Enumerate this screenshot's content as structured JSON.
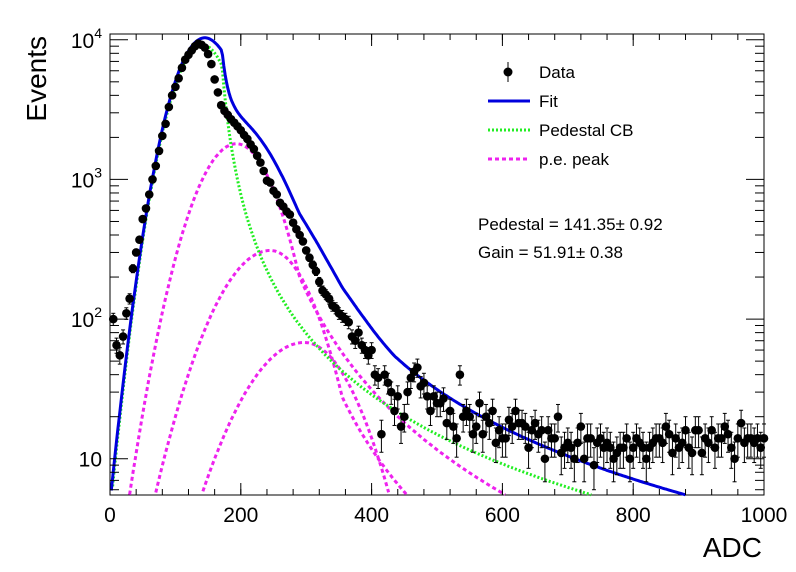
{
  "chart_data": {
    "type": "scatter",
    "xlabel": "ADC",
    "ylabel": "Events",
    "xlim": [
      0,
      1000
    ],
    "ylim": [
      5.5,
      11000
    ],
    "yscale": "log",
    "x_ticks": [
      {
        "value": 0,
        "label": "0"
      },
      {
        "value": 200,
        "label": "200"
      },
      {
        "value": 400,
        "label": "400"
      },
      {
        "value": 600,
        "label": "600"
      },
      {
        "value": 800,
        "label": "800"
      },
      {
        "value": 1000,
        "label": "1000"
      }
    ],
    "y_ticks": [
      {
        "value": 10,
        "base": "10",
        "exp": ""
      },
      {
        "value": 100,
        "base": "10",
        "exp": "2"
      },
      {
        "value": 1000,
        "base": "10",
        "exp": "3"
      },
      {
        "value": 10000,
        "base": "10",
        "exp": "4"
      }
    ],
    "legend": {
      "placement": "top-right",
      "entries": [
        {
          "label": "Data",
          "style": "marker",
          "color": "#000000"
        },
        {
          "label": "Fit",
          "style": "solid",
          "color": "#0000dd"
        },
        {
          "label": "Pedestal CB",
          "style": "dotted",
          "color": "#22ee22"
        },
        {
          "label": "p.e. peak",
          "style": "dashed",
          "color": "#ee22ee"
        }
      ]
    },
    "annotations": [
      "Pedestal = 141.35± 0.92",
      "Gain = 51.91± 0.38"
    ],
    "data_points": [
      [
        5,
        100
      ],
      [
        10,
        65
      ],
      [
        15,
        55
      ],
      [
        20,
        75
      ],
      [
        25,
        110
      ],
      [
        30,
        140
      ],
      [
        35,
        230
      ],
      [
        40,
        300
      ],
      [
        45,
        370
      ],
      [
        50,
        520
      ],
      [
        55,
        620
      ],
      [
        60,
        780
      ],
      [
        65,
        1000
      ],
      [
        70,
        1250
      ],
      [
        75,
        1600
      ],
      [
        80,
        2050
      ],
      [
        85,
        2500
      ],
      [
        90,
        3300
      ],
      [
        95,
        4000
      ],
      [
        100,
        4600
      ],
      [
        105,
        5300
      ],
      [
        110,
        6300
      ],
      [
        115,
        7200
      ],
      [
        120,
        7800
      ],
      [
        125,
        8400
      ],
      [
        130,
        9000
      ],
      [
        135,
        9400
      ],
      [
        140,
        9200
      ],
      [
        145,
        8800
      ],
      [
        150,
        7900
      ],
      [
        155,
        6700
      ],
      [
        160,
        5200
      ],
      [
        165,
        4200
      ],
      [
        170,
        3400
      ],
      [
        175,
        3100
      ],
      [
        180,
        2900
      ],
      [
        185,
        2700
      ],
      [
        190,
        2550
      ],
      [
        195,
        2400
      ],
      [
        200,
        2250
      ],
      [
        205,
        2080
      ],
      [
        210,
        1950
      ],
      [
        215,
        1780
      ],
      [
        220,
        1650
      ],
      [
        225,
        1480
      ],
      [
        230,
        1320
      ],
      [
        235,
        1150
      ],
      [
        240,
        980
      ],
      [
        245,
        950
      ],
      [
        250,
        830
      ],
      [
        255,
        780
      ],
      [
        260,
        680
      ],
      [
        265,
        640
      ],
      [
        270,
        590
      ],
      [
        275,
        560
      ],
      [
        280,
        490
      ],
      [
        285,
        440
      ],
      [
        290,
        400
      ],
      [
        295,
        360
      ],
      [
        300,
        310
      ],
      [
        305,
        275
      ],
      [
        310,
        245
      ],
      [
        315,
        220
      ],
      [
        320,
        185
      ],
      [
        325,
        160
      ],
      [
        330,
        150
      ],
      [
        335,
        140
      ],
      [
        340,
        125
      ],
      [
        345,
        120
      ],
      [
        350,
        110
      ],
      [
        355,
        105
      ],
      [
        360,
        100
      ],
      [
        365,
        95
      ],
      [
        370,
        75
      ],
      [
        375,
        70
      ],
      [
        380,
        80
      ],
      [
        385,
        65
      ],
      [
        390,
        60
      ],
      [
        395,
        55
      ],
      [
        400,
        60
      ],
      [
        405,
        40
      ],
      [
        410,
        38
      ],
      [
        415,
        15
      ],
      [
        420,
        40
      ],
      [
        425,
        35
      ],
      [
        430,
        30
      ],
      [
        435,
        22
      ],
      [
        440,
        28
      ],
      [
        445,
        17
      ],
      [
        450,
        20
      ],
      [
        455,
        30
      ],
      [
        460,
        38
      ],
      [
        465,
        42
      ],
      [
        470,
        45
      ],
      [
        475,
        33
      ],
      [
        480,
        35
      ],
      [
        485,
        28
      ],
      [
        490,
        22
      ],
      [
        495,
        28
      ],
      [
        500,
        25
      ],
      [
        505,
        25
      ],
      [
        510,
        27
      ],
      [
        515,
        18
      ],
      [
        520,
        22
      ],
      [
        525,
        17
      ],
      [
        530,
        14
      ],
      [
        535,
        40
      ],
      [
        540,
        20
      ],
      [
        545,
        22
      ],
      [
        550,
        20
      ],
      [
        555,
        15
      ],
      [
        560,
        17
      ],
      [
        565,
        25
      ],
      [
        570,
        15
      ],
      [
        575,
        20
      ],
      [
        580,
        18
      ],
      [
        585,
        22
      ],
      [
        590,
        13
      ],
      [
        595,
        16
      ],
      [
        600,
        14
      ],
      [
        605,
        14
      ],
      [
        610,
        19
      ],
      [
        615,
        17
      ],
      [
        620,
        22
      ],
      [
        625,
        18
      ],
      [
        630,
        18
      ],
      [
        635,
        17
      ],
      [
        640,
        12
      ],
      [
        645,
        16
      ],
      [
        650,
        18
      ],
      [
        655,
        15
      ],
      [
        660,
        16
      ],
      [
        665,
        10
      ],
      [
        670,
        16
      ],
      [
        675,
        14
      ],
      [
        680,
        14
      ],
      [
        685,
        20
      ],
      [
        690,
        11
      ],
      [
        695,
        12
      ],
      [
        700,
        13
      ],
      [
        705,
        12
      ],
      [
        710,
        10
      ],
      [
        715,
        13
      ],
      [
        720,
        17
      ],
      [
        725,
        10
      ],
      [
        730,
        14
      ],
      [
        735,
        14
      ],
      [
        740,
        9
      ],
      [
        745,
        13
      ],
      [
        750,
        14
      ],
      [
        755,
        12
      ],
      [
        760,
        13
      ],
      [
        765,
        12
      ],
      [
        770,
        10
      ],
      [
        775,
        11
      ],
      [
        780,
        12
      ],
      [
        785,
        12
      ],
      [
        790,
        14
      ],
      [
        795,
        10
      ],
      [
        800,
        12
      ],
      [
        805,
        14
      ],
      [
        810,
        13
      ],
      [
        815,
        12
      ],
      [
        820,
        10
      ],
      [
        825,
        12
      ],
      [
        830,
        13
      ],
      [
        835,
        14
      ],
      [
        840,
        14
      ],
      [
        845,
        13
      ],
      [
        850,
        17
      ],
      [
        855,
        15
      ],
      [
        860,
        11
      ],
      [
        865,
        14
      ],
      [
        870,
        12
      ],
      [
        875,
        13
      ],
      [
        880,
        16
      ],
      [
        885,
        12
      ],
      [
        890,
        11
      ],
      [
        895,
        16
      ],
      [
        900,
        16
      ],
      [
        905,
        11
      ],
      [
        910,
        14
      ],
      [
        915,
        13
      ],
      [
        920,
        16
      ],
      [
        925,
        12
      ],
      [
        930,
        14
      ],
      [
        935,
        14
      ],
      [
        940,
        17
      ],
      [
        945,
        15
      ],
      [
        950,
        12
      ],
      [
        955,
        10
      ],
      [
        960,
        14
      ],
      [
        965,
        18
      ],
      [
        970,
        13
      ],
      [
        975,
        14
      ],
      [
        980,
        14
      ],
      [
        985,
        13
      ],
      [
        990,
        14
      ],
      [
        995,
        12
      ],
      [
        1000,
        14
      ]
    ]
  }
}
